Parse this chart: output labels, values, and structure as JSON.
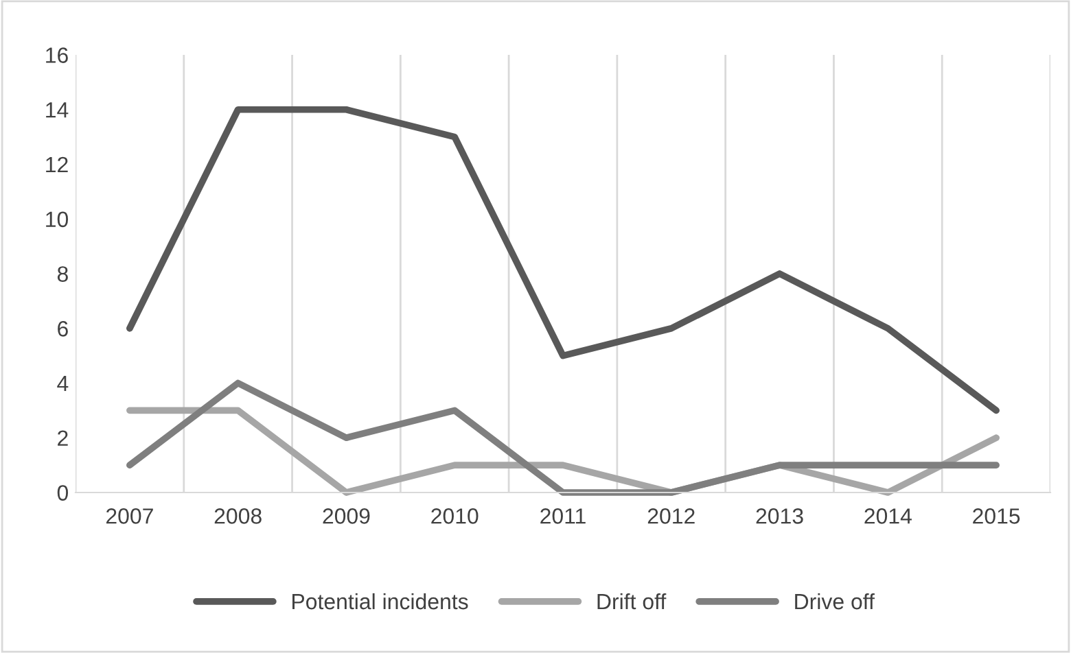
{
  "chart_data": {
    "type": "line",
    "categories": [
      "2007",
      "2008",
      "2009",
      "2010",
      "2011",
      "2012",
      "2013",
      "2014",
      "2015"
    ],
    "series": [
      {
        "name": "Potential incidents",
        "color": "#595959",
        "values": [
          6,
          14,
          14,
          13,
          5,
          6,
          8,
          6,
          3
        ]
      },
      {
        "name": "Drift off",
        "color": "#a6a6a6",
        "values": [
          3,
          3,
          0,
          1,
          1,
          0,
          1,
          0,
          2
        ]
      },
      {
        "name": "Drive off",
        "color": "#7f7f7f",
        "values": [
          1,
          4,
          2,
          3,
          0,
          0,
          1,
          1,
          1
        ]
      }
    ],
    "ylim": [
      0,
      16
    ],
    "yticks": [
      0,
      2,
      4,
      6,
      8,
      10,
      12,
      14,
      16
    ],
    "grid": "x",
    "legend": "bottom",
    "marker": "none",
    "line_style": "solid"
  }
}
